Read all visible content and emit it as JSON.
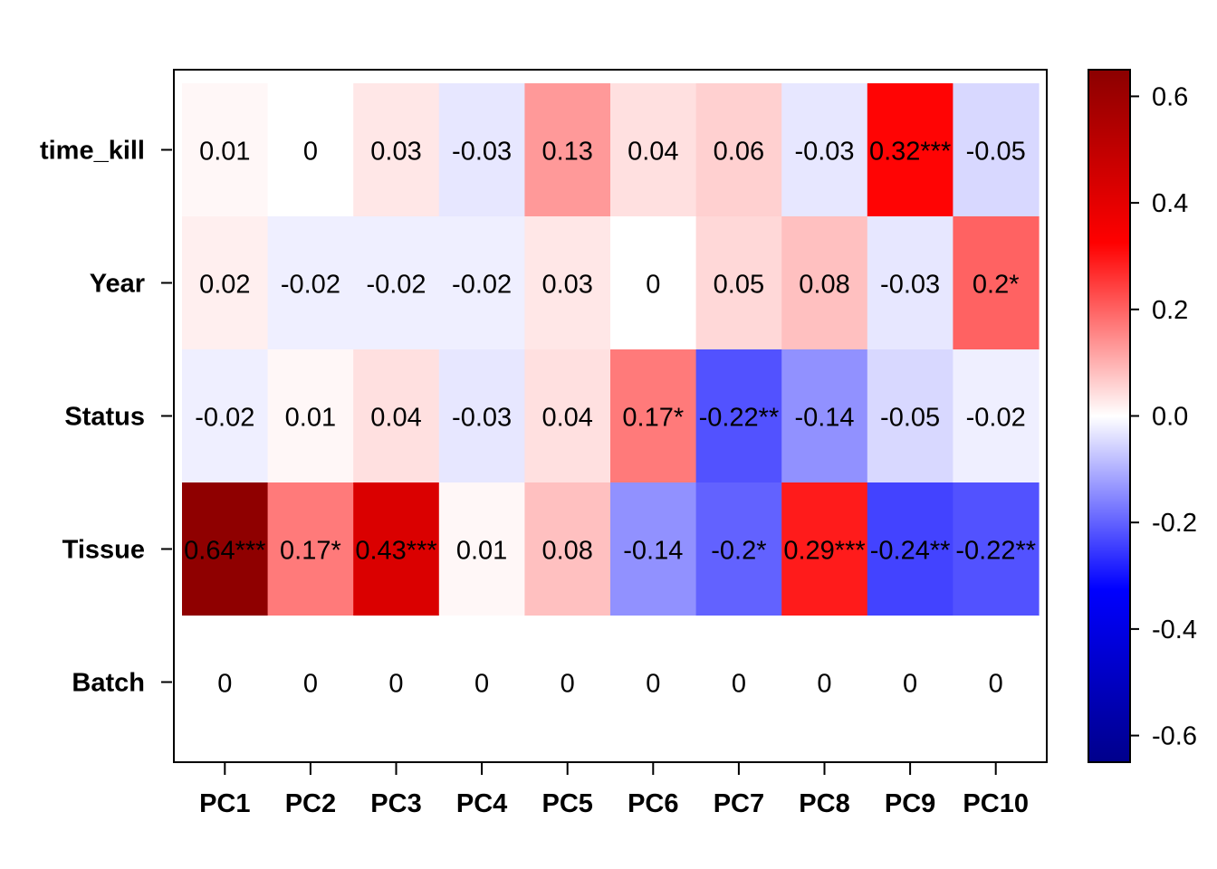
{
  "chart_data": {
    "type": "heatmap",
    "rows": [
      "time_kill",
      "Year",
      "Status",
      "Tissue",
      "Batch"
    ],
    "columns": [
      "PC1",
      "PC2",
      "PC3",
      "PC4",
      "PC5",
      "PC6",
      "PC7",
      "PC8",
      "PC9",
      "PC10"
    ],
    "values": [
      [
        0.01,
        0.0,
        0.03,
        -0.03,
        0.13,
        0.04,
        0.06,
        -0.03,
        0.32,
        -0.05
      ],
      [
        0.02,
        -0.02,
        -0.02,
        -0.02,
        0.03,
        0.0,
        0.05,
        0.08,
        -0.03,
        0.2
      ],
      [
        -0.02,
        0.01,
        0.04,
        -0.03,
        0.04,
        0.17,
        -0.22,
        -0.14,
        -0.05,
        -0.02
      ],
      [
        0.64,
        0.17,
        0.43,
        0.01,
        0.08,
        -0.14,
        -0.2,
        0.29,
        -0.24,
        -0.22
      ],
      [
        0,
        0,
        0,
        0,
        0,
        0,
        0,
        0,
        0,
        0
      ]
    ],
    "labels": [
      [
        "0.01",
        "0",
        "0.03",
        "-0.03",
        "0.13",
        "0.04",
        "0.06",
        "-0.03",
        "0.32***",
        "-0.05"
      ],
      [
        "0.02",
        "-0.02",
        "-0.02",
        "-0.02",
        "0.03",
        "0",
        "0.05",
        "0.08",
        "-0.03",
        "0.2*"
      ],
      [
        "-0.02",
        "0.01",
        "0.04",
        "-0.03",
        "0.04",
        "0.17*",
        "-0.22**",
        "-0.14",
        "-0.05",
        "-0.02"
      ],
      [
        "0.64***",
        "0.17*",
        "0.43***",
        "0.01",
        "0.08",
        "-0.14",
        "-0.2*",
        "0.29***",
        "-0.24**",
        "-0.22**"
      ],
      [
        "0",
        "0",
        "0",
        "0",
        "0",
        "0",
        "0",
        "0",
        "0",
        "0"
      ]
    ],
    "color_scale": {
      "range": [
        -0.65,
        0.65
      ],
      "stops": [
        "#00008b",
        "#0000ff",
        "#ffffff",
        "#ff0000",
        "#8b0000"
      ],
      "ticks": [
        -0.6,
        -0.4,
        -0.2,
        0.0,
        0.2,
        0.4,
        0.6
      ],
      "tick_labels": [
        "-0.6",
        "-0.4",
        "-0.2",
        "0.0",
        "0.2",
        "0.4",
        "0.6"
      ]
    },
    "legend_placement": "right"
  }
}
